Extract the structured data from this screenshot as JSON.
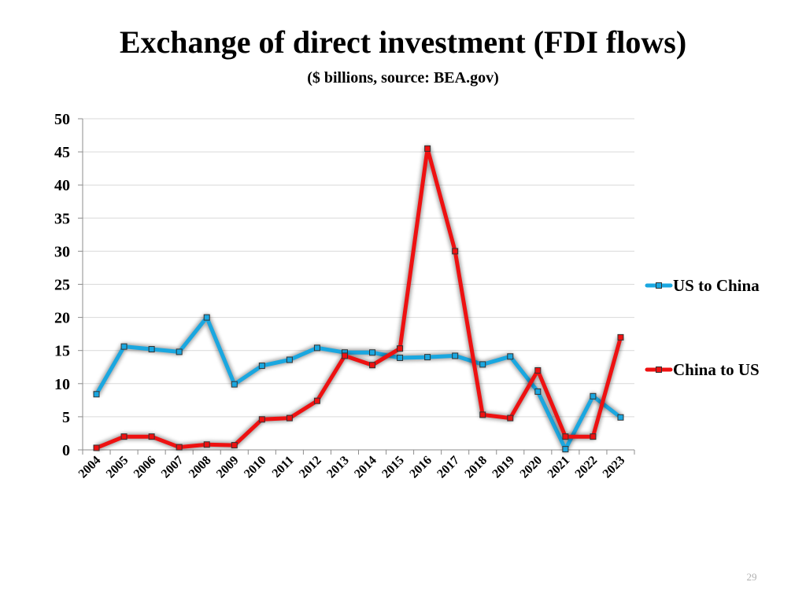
{
  "slide": {
    "title": "Exchange of direct investment (FDI flows)",
    "subtitle": "($ billions, source: BEA.gov)",
    "page_number": "29"
  },
  "colors": {
    "us_to_china": "#1aa7e0",
    "china_to_us": "#ee1111",
    "gridline": "#d9d9d9",
    "axis": "#8c8c8c"
  },
  "chart_data": {
    "type": "line",
    "title": "",
    "xlabel": "",
    "ylabel": "",
    "ylim": [
      0,
      50
    ],
    "yticks": [
      0,
      5,
      10,
      15,
      20,
      25,
      30,
      35,
      40,
      45,
      50
    ],
    "grid": true,
    "legend_position": "right",
    "categories": [
      "2004",
      "2005",
      "2006",
      "2007",
      "2008",
      "2009",
      "2010",
      "2011",
      "2012",
      "2013",
      "2014",
      "2015",
      "2016",
      "2017",
      "2018",
      "2019",
      "2020",
      "2021",
      "2022",
      "2023"
    ],
    "series": [
      {
        "name": "US to China",
        "color": "#1aa7e0",
        "values": [
          8.4,
          15.6,
          15.2,
          14.8,
          20.0,
          9.9,
          12.7,
          13.6,
          15.4,
          14.7,
          14.7,
          13.9,
          14.0,
          14.2,
          12.9,
          14.1,
          8.8,
          0.1,
          8.1,
          4.9
        ]
      },
      {
        "name": "China to US",
        "color": "#ee1111",
        "values": [
          0.3,
          2.0,
          2.0,
          0.4,
          0.8,
          0.7,
          4.6,
          4.8,
          7.4,
          14.2,
          12.8,
          15.3,
          45.5,
          30.0,
          5.3,
          4.8,
          12.0,
          2.0,
          2.0,
          17.0
        ]
      }
    ]
  }
}
